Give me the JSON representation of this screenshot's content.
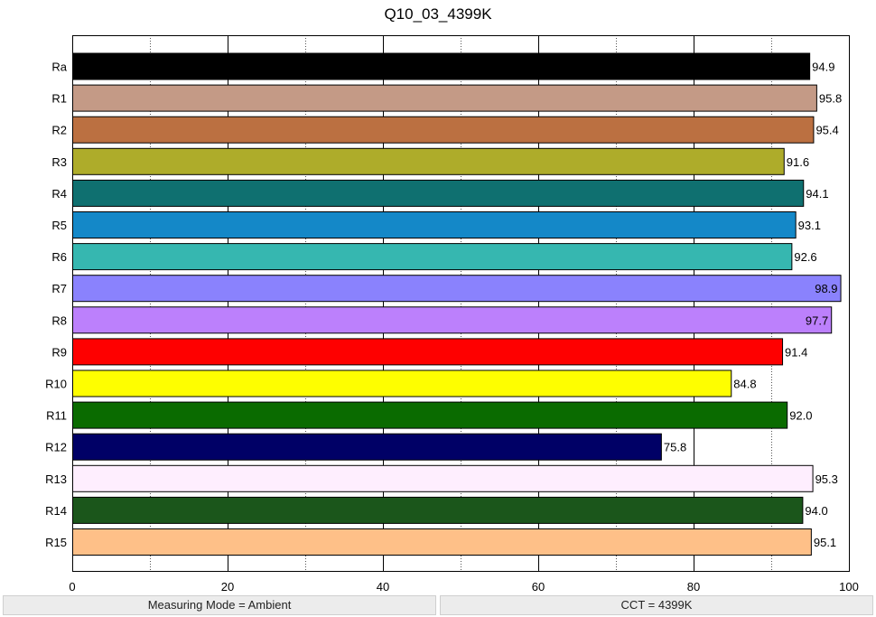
{
  "chart_data": {
    "type": "bar",
    "orientation": "horizontal",
    "title": "Q10_03_4399K",
    "xlabel": "",
    "ylabel": "",
    "xlim": [
      0,
      100
    ],
    "x_ticks": [
      0,
      20,
      40,
      60,
      80,
      100
    ],
    "grid": "vertical dotted every 10",
    "categories": [
      "Ra",
      "R1",
      "R2",
      "R3",
      "R4",
      "R5",
      "R6",
      "R7",
      "R8",
      "R9",
      "R10",
      "R11",
      "R12",
      "R13",
      "R14",
      "R15"
    ],
    "values": [
      94.9,
      95.8,
      95.4,
      91.6,
      94.1,
      93.1,
      92.6,
      98.9,
      97.7,
      91.4,
      84.8,
      92.0,
      75.8,
      95.3,
      94.0,
      95.1
    ],
    "labels": [
      "94.9",
      "95.8",
      "95.4",
      "91.6",
      "94.1",
      "93.1",
      "92.6",
      "98.9",
      "97.7",
      "91.4",
      "84.8",
      "92.0",
      "75.8",
      "95.3",
      "94.0",
      "95.1"
    ],
    "colors": [
      "#000000",
      "#c49a86",
      "#bb7041",
      "#aeac2a",
      "#0f7070",
      "#1488c8",
      "#36b7b0",
      "#8a82fd",
      "#bc80fc",
      "#fe0000",
      "#fefe00",
      "#0a6b00",
      "#000066",
      "#feeefe",
      "#1b561b",
      "#fec088"
    ]
  },
  "status": {
    "measuring_mode": "Measuring Mode = Ambient",
    "cct": "CCT = 4399K"
  }
}
